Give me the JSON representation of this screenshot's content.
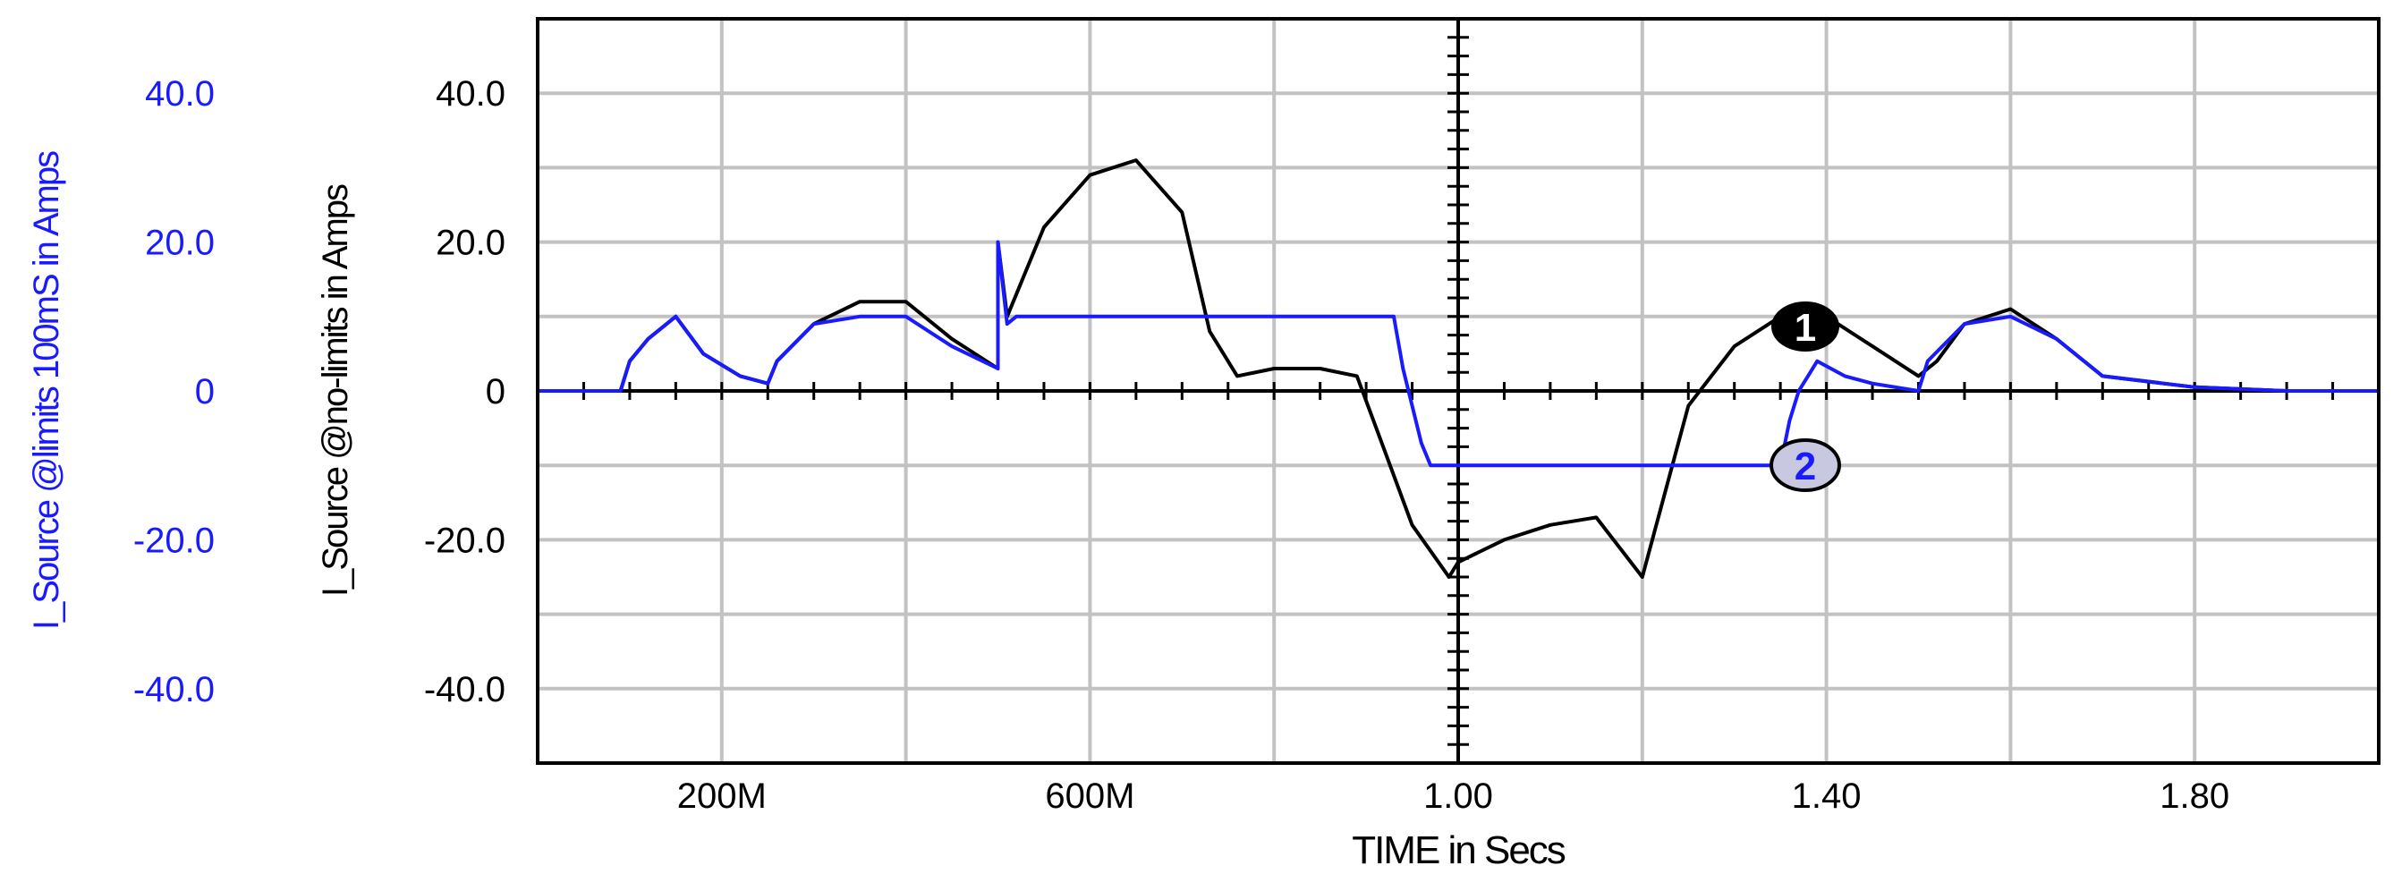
{
  "chart_data": {
    "type": "line",
    "xlabel": "TIME in Secs",
    "x_tick_labels": [
      "200M",
      "600M",
      "1.00",
      "1.40",
      "1.80"
    ],
    "x_tick_values": [
      0.2,
      0.6,
      1.0,
      1.4,
      1.8
    ],
    "xlim": [
      0,
      2.0
    ],
    "grid": true,
    "y_axes": [
      {
        "label": "I_Source @no-limits in Amps",
        "color": "#000000",
        "ylim": [
          -50,
          50
        ],
        "tick_labels": [
          "40.0",
          "20.0",
          "0",
          "-20.0",
          "-40.0"
        ],
        "tick_values": [
          40,
          20,
          0,
          -20,
          -40
        ]
      },
      {
        "label": "I_Source @limits 100mS in Amps",
        "color": "#1a1aff",
        "ylim": [
          -50,
          50
        ],
        "tick_labels": [
          "40.0",
          "20.0",
          "0",
          "-20.0",
          "-40.0"
        ],
        "tick_values": [
          40,
          20,
          0,
          -20,
          -40
        ]
      }
    ],
    "series": [
      {
        "marker": "1",
        "color": "#000000",
        "x": [
          0.0,
          0.09,
          0.1,
          0.12,
          0.15,
          0.18,
          0.22,
          0.25,
          0.26,
          0.3,
          0.35,
          0.4,
          0.45,
          0.5,
          0.5,
          0.51,
          0.55,
          0.6,
          0.65,
          0.7,
          0.73,
          0.76,
          0.8,
          0.85,
          0.89,
          0.92,
          0.95,
          0.99,
          1.0,
          1.05,
          1.1,
          1.15,
          1.2,
          1.25,
          1.3,
          1.35,
          1.4,
          1.45,
          1.5,
          1.52,
          1.55,
          1.6,
          1.65,
          1.7,
          1.8,
          1.9,
          2.0
        ],
        "y": [
          0,
          0,
          4,
          7,
          10,
          5,
          2,
          1,
          4,
          9,
          12,
          12,
          7,
          3,
          20,
          10,
          22,
          29,
          31,
          24,
          8,
          2,
          3,
          3,
          2,
          -8,
          -18,
          -25,
          -23,
          -20,
          -18,
          -17,
          -25,
          -2,
          6,
          10,
          10,
          6,
          2,
          4,
          9,
          11,
          7,
          2,
          0.5,
          0,
          0
        ]
      },
      {
        "marker": "2",
        "color": "#1a1aff",
        "x": [
          0.0,
          0.09,
          0.1,
          0.12,
          0.15,
          0.18,
          0.22,
          0.25,
          0.26,
          0.3,
          0.35,
          0.4,
          0.45,
          0.5,
          0.5,
          0.51,
          0.52,
          0.6,
          0.7,
          0.8,
          0.9,
          0.93,
          0.94,
          0.96,
          0.97,
          1.0,
          1.1,
          1.2,
          1.3,
          1.35,
          1.36,
          1.37,
          1.38,
          1.39,
          1.42,
          1.45,
          1.5,
          1.51,
          1.55,
          1.6,
          1.65,
          1.7,
          1.8,
          1.9,
          2.0
        ],
        "y": [
          0,
          0,
          4,
          7,
          10,
          5,
          2,
          1,
          4,
          9,
          10,
          10,
          6,
          3,
          20,
          9,
          10,
          10,
          10,
          10,
          10,
          10,
          3,
          -7,
          -10,
          -10,
          -10,
          -10,
          -10,
          -10,
          -4,
          0,
          2,
          4,
          2,
          1,
          0,
          4,
          9,
          10,
          7,
          2,
          0.5,
          0,
          0
        ]
      }
    ]
  }
}
